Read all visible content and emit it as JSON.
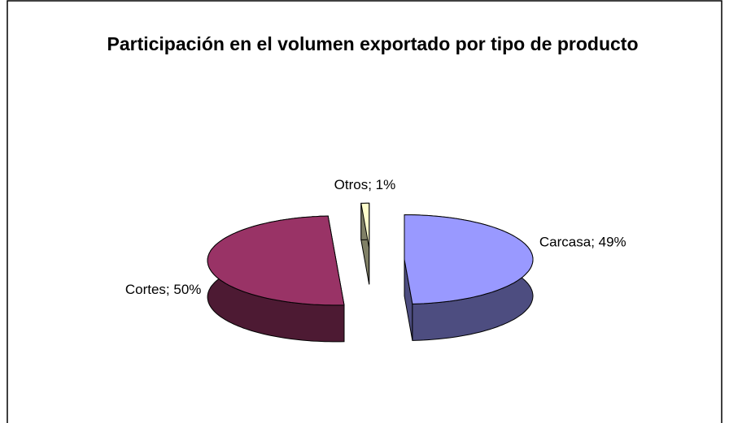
{
  "chart_data": {
    "type": "pie",
    "title": "Participación en el volumen exportado por tipo de producto",
    "categories": [
      "Carcasa",
      "Cortes",
      "Otros"
    ],
    "values": [
      49,
      50,
      1
    ],
    "value_labels": [
      "Carcasa; 49%",
      "Cortes; 50%",
      "Otros; 1%"
    ],
    "colors": [
      "#9999ff",
      "#993366",
      "#ffffcc"
    ]
  }
}
